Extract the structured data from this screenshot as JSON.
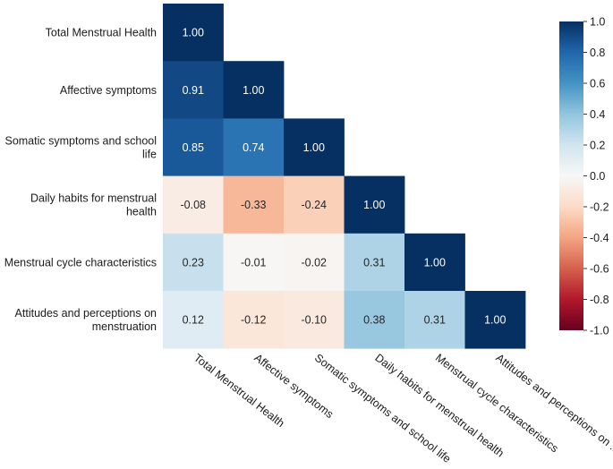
{
  "chart_data": {
    "type": "heatmap",
    "title": "",
    "layout": "lower-triangle",
    "labels": [
      "Total Menstrual Health",
      "Affective symptoms",
      "Somatic symptoms and school life",
      "Daily habits for menstrual health",
      "Menstrual cycle characteristics",
      "Attitudes and perceptions on menstruation"
    ],
    "row_labels": [
      "Total Menstrual Health",
      "Affective symptoms",
      "Somatic symptoms and school life",
      "Daily habits for menstrual health",
      "Menstrual cycle characteristics",
      "Attitudes and perceptions on menstruation"
    ],
    "col_labels": [
      "Total Menstrual Health",
      "Affective symptoms",
      "Somatic symptoms and school life",
      "Daily habits for menstrual health",
      "Menstrual cycle characteristics",
      "Attitudes and perceptions on ..."
    ],
    "matrix": [
      [
        1.0
      ],
      [
        0.91,
        1.0
      ],
      [
        0.85,
        0.74,
        1.0
      ],
      [
        -0.08,
        -0.33,
        -0.24,
        1.0
      ],
      [
        0.23,
        -0.01,
        -0.02,
        0.31,
        1.0
      ],
      [
        0.12,
        -0.12,
        -0.1,
        0.38,
        0.31,
        1.0
      ]
    ],
    "value_labels": [
      [
        "1.00"
      ],
      [
        "0.91",
        "1.00"
      ],
      [
        "0.85",
        "0.74",
        "1.00"
      ],
      [
        "-0.08",
        "-0.33",
        "-0.24",
        "1.00"
      ],
      [
        "0.23",
        "-0.01",
        "-0.02",
        "0.31",
        "1.00"
      ],
      [
        "0.12",
        "-0.12",
        "-0.10",
        "0.38",
        "0.31",
        "1.00"
      ]
    ],
    "colorbar": {
      "range": [
        -1.0,
        1.0
      ],
      "ticks": [
        1.0,
        0.8,
        0.6,
        0.4,
        0.2,
        0.0,
        -0.2,
        -0.4,
        -0.6,
        -0.8,
        -1.0
      ],
      "tick_labels": [
        "1.0",
        "0.8",
        "0.6",
        "0.4",
        "0.2",
        "0.0",
        "-0.2",
        "-0.4",
        "-0.6",
        "-0.8",
        "-1.0"
      ],
      "colormap": "RdBu",
      "stops": [
        "#67001f",
        "#b2182b",
        "#d6604d",
        "#f4a582",
        "#fddbc7",
        "#f7f7f7",
        "#d1e5f0",
        "#92c5de",
        "#4393c3",
        "#2166ac",
        "#053061"
      ]
    }
  }
}
